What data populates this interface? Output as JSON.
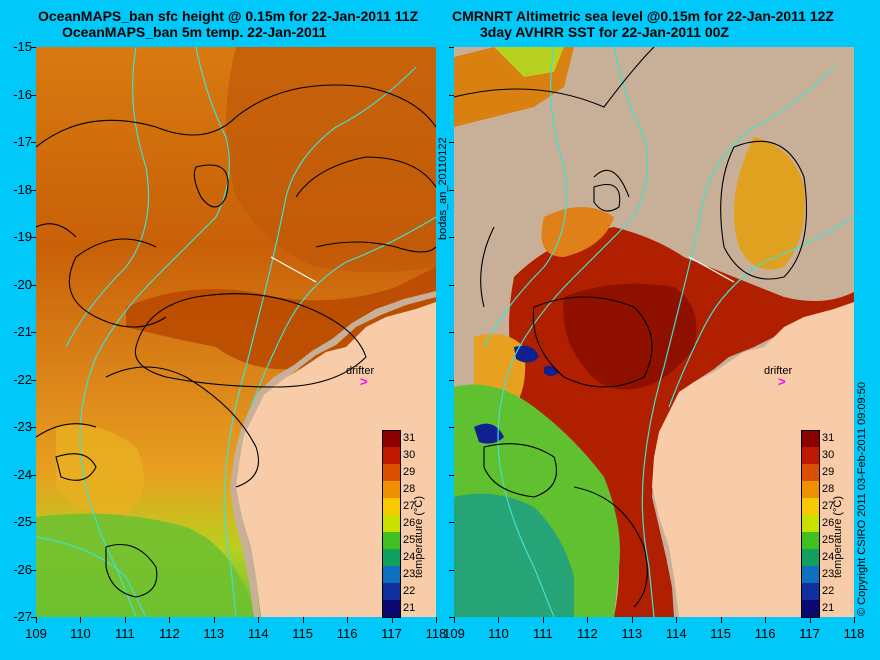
{
  "left_title": {
    "line1": "OceanMAPS_ban sfc height @ 0.15m for 22-Jan-2011 11Z",
    "line2": "OceanMAPS_ban 5m temp. 22-Jan-2011"
  },
  "right_title": {
    "line1": "CMRNRT Altimetric sea level  @0.15m  for 22-Jan-2011 12Z",
    "line2": "3day AVHRR SST for 22-Jan-2011 00Z"
  },
  "y_ticks": [
    "-15",
    "-16",
    "-17",
    "-18",
    "-19",
    "-20",
    "-21",
    "-22",
    "-23",
    "-24",
    "-25",
    "-26",
    "-27"
  ],
  "x_ticks": [
    "109",
    "110",
    "111",
    "112",
    "113",
    "114",
    "115",
    "116",
    "117",
    "118"
  ],
  "colorbar": {
    "title": "temperature (°C)",
    "ticks": [
      "31",
      "30",
      "29",
      "28",
      "27",
      "26",
      "25",
      "24",
      "23",
      "22",
      "21"
    ],
    "colors": [
      "#8b0000",
      "#c01800",
      "#d85000",
      "#f09000",
      "#f8c800",
      "#c8e000",
      "#40c020",
      "#10a060",
      "#1070c0",
      "#1030a0",
      "#0a0a70"
    ]
  },
  "drifter_label": "drifter",
  "drifter_symbol": ">",
  "side_labels": {
    "run_id": "bodas_an_20110122",
    "copyright": "© Copyright CSIRO 2011   03-Feb-2011 09:09:50"
  },
  "colors": {
    "land": "#f8cca8",
    "background": "#00c8f8",
    "contour": "#000000",
    "bathymetry": "#40e0d0",
    "missing": "#c8b098"
  }
}
